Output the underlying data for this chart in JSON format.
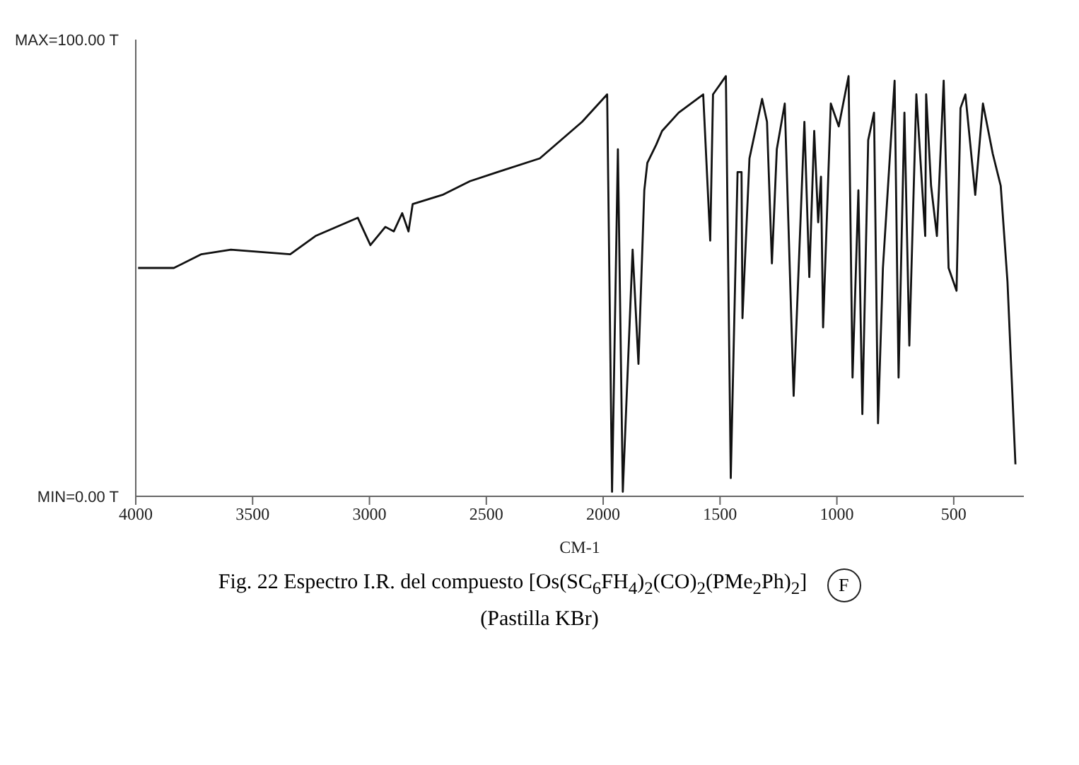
{
  "chart_data": {
    "type": "line",
    "title": "Fig. 22   Espectro I.R. del compuesto [Os(SC$_{6}$FH$_{4}$)$_{2}$(CO)$_{2}$(PMe$_{2}$Ph)$_{2}$]",
    "subtitle": "(Pastilla KBr)",
    "annotations": [
      "F"
    ],
    "xlabel": "CM-1",
    "x": [
      3990,
      3837,
      3719,
      3593,
      3339,
      3231,
      3050,
      2996,
      2932,
      2896,
      2860,
      2833,
      2815,
      2688,
      2570,
      2452,
      2271,
      2090,
      1983,
      1962,
      1937,
      1916,
      1874,
      1849,
      1824,
      1811,
      1773,
      1748,
      1677,
      1572,
      1542,
      1530,
      1475,
      1454,
      1425,
      1408,
      1404,
      1374,
      1320,
      1299,
      1278,
      1257,
      1223,
      1185,
      1139,
      1118,
      1097,
      1080,
      1068,
      1059,
      1026,
      992,
      950,
      933,
      908,
      891,
      866,
      841,
      824,
      803,
      753,
      736,
      711,
      690,
      660,
      622,
      618,
      597,
      572,
      543,
      522,
      488,
      471,
      450,
      408,
      375,
      333,
      299,
      270,
      236
    ],
    "series": [
      {
        "color": "#111111",
        "values": [
          50,
          50,
          53,
          54,
          53,
          57,
          61,
          55,
          59,
          58,
          62,
          58,
          64,
          66,
          69,
          71,
          74,
          82,
          88,
          1,
          76,
          1,
          54,
          29,
          67,
          73,
          77,
          80,
          84,
          88,
          56,
          88,
          92,
          4,
          71,
          71,
          39,
          74,
          87,
          82,
          51,
          76,
          86,
          22,
          82,
          48,
          80,
          60,
          70,
          37,
          86,
          81,
          92,
          26,
          67,
          18,
          78,
          84,
          16,
          50,
          91,
          26,
          84,
          33,
          88,
          57,
          88,
          68,
          57,
          91,
          50,
          45,
          85,
          88,
          66,
          86,
          75,
          68,
          47,
          7
        ]
      }
    ],
    "xlim": [
      4000,
      200
    ],
    "xticks": [
      4000,
      3500,
      3000,
      2500,
      2000,
      1500,
      1000,
      500
    ],
    "ylim": [
      0,
      100
    ],
    "yticks": [
      {
        "value": 100,
        "label": "MAX=100.00 T"
      },
      {
        "value": 0,
        "label": "MIN=0.00 T"
      }
    ],
    "grid": false,
    "legend": false,
    "marker": "none",
    "line_style": "solid"
  }
}
